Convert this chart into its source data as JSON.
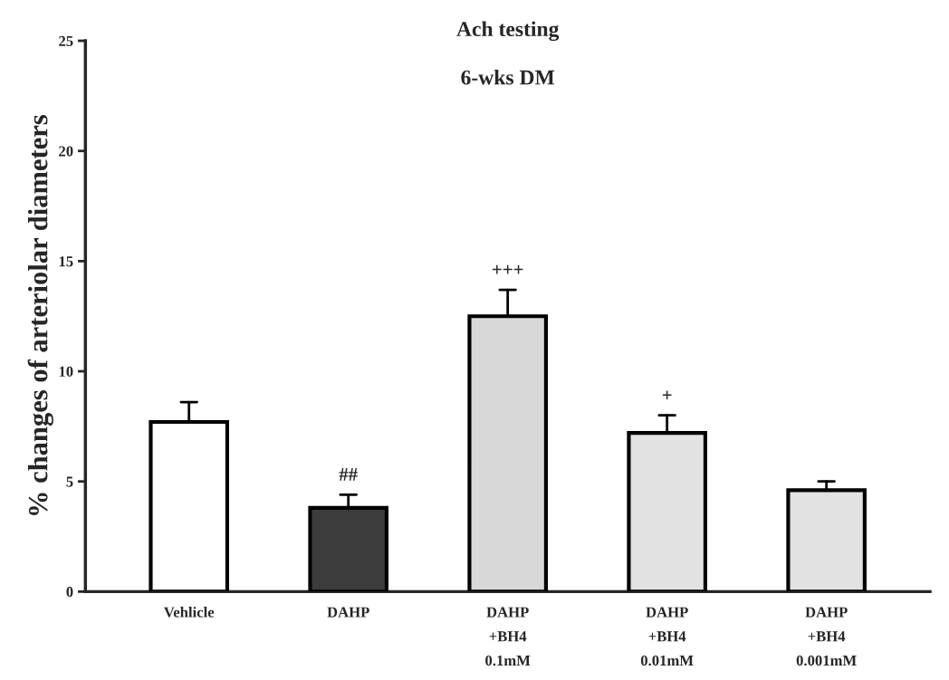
{
  "chart_data": {
    "type": "bar",
    "title": "Ach testing",
    "subtitle": "6-wks DM",
    "ylabel": "% changes of arteriolar diameters",
    "categories": [
      "Vehlicle",
      "DAHP",
      "DAHP\n+BH4\n0.1mM",
      "DAHP\n+BH4\n0.01mM",
      "DAHP\n+BH4\n0.001mM"
    ],
    "values": [
      7.7,
      3.8,
      12.5,
      7.2,
      4.6
    ],
    "errors": [
      [
        7.7,
        8.6
      ],
      [
        3.8,
        4.4
      ],
      [
        12.5,
        13.7
      ],
      [
        7.2,
        8.0
      ],
      [
        4.6,
        5.0
      ]
    ],
    "colors": [
      "#ffffff",
      "#3c3c3c",
      "#d8d8d8",
      "#e2e2e2",
      "#e2e2e2"
    ],
    "ylim": [
      0,
      25
    ],
    "yticks": [
      0,
      5,
      10,
      15,
      20,
      25
    ],
    "grid": false,
    "value_labels": [
      null,
      "##",
      "+++",
      "+",
      null
    ]
  }
}
